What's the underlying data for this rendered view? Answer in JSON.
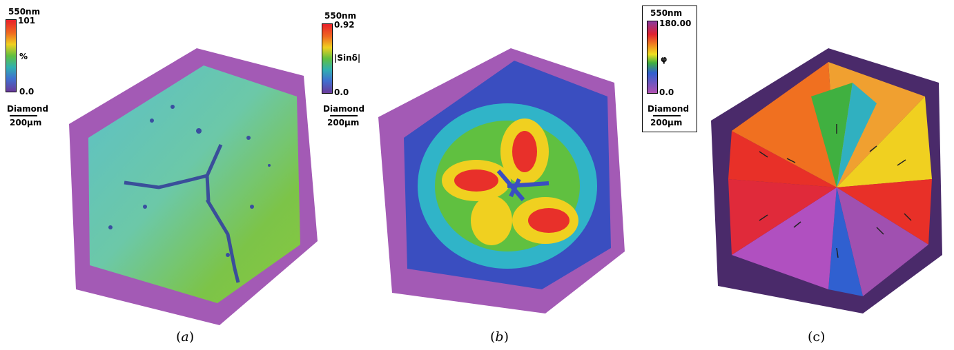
{
  "panels": {
    "a": {
      "caption_open": "(",
      "caption_letter": "a",
      "caption_close": ")",
      "legend": {
        "wavelength": "550nm",
        "max": "101",
        "quantity": "%",
        "min": "0.0",
        "specimen": "Diamond",
        "scale": "200µm"
      }
    },
    "b": {
      "caption_open": "(",
      "caption_letter": "b",
      "caption_close": ")",
      "legend": {
        "wavelength": "550nm",
        "max": "0.92",
        "quantity": "|Sinδ|",
        "min": "0.0",
        "specimen": "Diamond",
        "scale": "200µm"
      }
    },
    "c": {
      "caption": "(c)",
      "legend": {
        "wavelength": "550nm",
        "max": "180.00",
        "quantity": "φ",
        "min": "0.0",
        "specimen": "Diamond",
        "scale": "200µm"
      }
    }
  }
}
